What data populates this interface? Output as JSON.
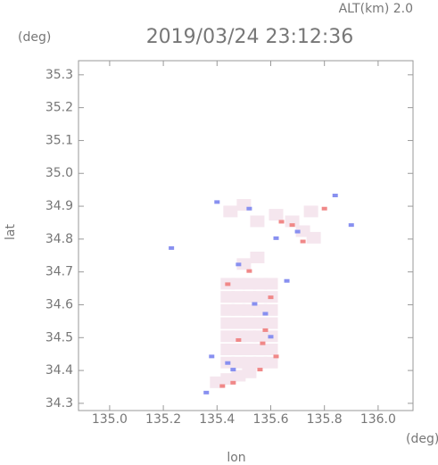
{
  "chart_data": {
    "type": "scatter",
    "header": "ALT(km) 2.0",
    "title": "2019/03/24 23:12:36",
    "y_unit": "(deg)",
    "x_unit": "(deg)",
    "xlabel": "lon",
    "ylabel": "lat",
    "xlim": [
      134.884,
      136.13
    ],
    "ylim": [
      34.278,
      35.343
    ],
    "xticks": [
      {
        "value": 135,
        "label": "135.0"
      },
      135.2,
      135.4,
      135.6,
      135.8,
      {
        "value": 136,
        "label": "136.0"
      }
    ],
    "yticks": [
      34.3,
      34.4,
      34.5,
      34.6,
      34.7,
      34.8,
      34.9,
      {
        "value": 35,
        "label": "35.0"
      },
      35.1,
      35.2,
      35.3
    ],
    "series": [
      {
        "color": "#f5e6ee",
        "x": [
          135.44,
          135.48,
          135.52,
          135.56,
          135.6,
          135.44,
          135.48,
          135.52,
          135.56,
          135.6,
          135.44,
          135.48,
          135.52,
          135.56,
          135.6,
          135.44,
          135.48,
          135.52,
          135.56,
          135.6,
          135.44,
          135.48,
          135.52,
          135.56,
          135.6,
          135.44,
          135.48,
          135.52,
          135.56,
          135.6,
          135.44,
          135.48,
          135.52,
          135.56,
          135.6,
          135.4,
          135.44,
          135.48,
          135.52,
          135.5,
          135.55,
          135.55,
          135.62,
          135.68,
          135.72,
          135.76,
          135.75,
          135.5,
          135.45
        ],
        "y": [
          34.42,
          34.42,
          34.42,
          34.42,
          34.42,
          34.46,
          34.46,
          34.46,
          34.46,
          34.46,
          34.5,
          34.5,
          34.5,
          34.5,
          34.5,
          34.54,
          34.54,
          34.54,
          34.54,
          34.54,
          34.58,
          34.58,
          34.58,
          34.58,
          34.58,
          34.62,
          34.62,
          34.62,
          34.62,
          34.62,
          34.66,
          34.66,
          34.66,
          34.66,
          34.66,
          34.36,
          34.37,
          34.38,
          34.39,
          34.72,
          34.74,
          34.85,
          34.87,
          34.85,
          34.82,
          34.8,
          34.88,
          34.9,
          34.88
        ]
      },
      {
        "color": "#f08888",
        "x": [
          135.42,
          135.46,
          135.48,
          135.58,
          135.56,
          135.62,
          135.44,
          135.6,
          135.68,
          135.72,
          135.8,
          135.64,
          135.52,
          135.57
        ],
        "y": [
          34.35,
          34.36,
          34.49,
          34.52,
          34.4,
          34.44,
          34.66,
          34.62,
          34.84,
          34.79,
          34.89,
          34.85,
          34.7,
          34.48
        ]
      },
      {
        "color": "#8890f0",
        "x": [
          135.36,
          135.44,
          135.46,
          135.6,
          135.54,
          135.48,
          135.4,
          135.62,
          135.7,
          135.9,
          135.84,
          135.66,
          135.23,
          135.52,
          135.58,
          135.38
        ],
        "y": [
          34.33,
          34.42,
          34.4,
          34.5,
          34.6,
          34.72,
          34.91,
          34.8,
          34.82,
          34.84,
          34.93,
          34.67,
          34.77,
          34.89,
          34.57,
          34.44
        ]
      }
    ]
  }
}
